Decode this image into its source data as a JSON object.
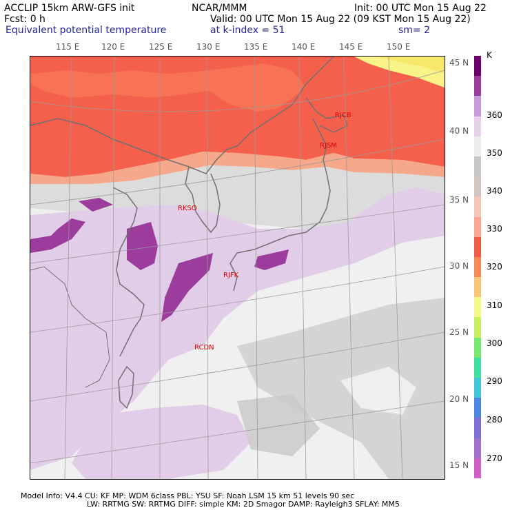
{
  "header": {
    "line1_left": "ACCLIP 15km ARW-GFS init",
    "line1_center": "NCAR/MMM",
    "line1_right": "Init: 00 UTC Mon 15 Aug 22",
    "line2_left": "Fcst:     0 h",
    "line2_right": "Valid: 00 UTC Mon 15 Aug 22 (09 KST Mon 15 Aug 22)",
    "line3_left": "Equivalent potential temperature",
    "line3_center": "at k-index =   51",
    "line3_right": "sm= 2"
  },
  "map": {
    "lon_labels": [
      "115 E",
      "120 E",
      "125 E",
      "130 E",
      "135 E",
      "140 E",
      "145 E",
      "150 E"
    ],
    "lat_labels": [
      "45 N",
      "40 N",
      "35 N",
      "30 N",
      "25 N",
      "20 N",
      "15 N"
    ],
    "stations": [
      "RJCB",
      "RJSM",
      "RKSO",
      "RJFK",
      "RCDN"
    ]
  },
  "colorbar": {
    "unit": "K",
    "labels": [
      "360",
      "350",
      "340",
      "330",
      "320",
      "310",
      "300",
      "290",
      "280",
      "270"
    ],
    "colors": [
      "#6a006a",
      "#9c3c9c",
      "#c89cd8",
      "#e6d0ea",
      "#ececec",
      "#c8c8c8",
      "#d2c6c0",
      "#f2c8b8",
      "#f8a890",
      "#f25a4a",
      "#f88a5a",
      "#f8c878",
      "#f8f888",
      "#c8f060",
      "#78e870",
      "#40e0a0",
      "#40c8d8",
      "#4c88e0",
      "#8070d8",
      "#a070d0",
      "#d060c8"
    ]
  },
  "footer": {
    "line1": "Model Info: V4.4      CU: KF      MP: WDM 6class   PBL: YSU       SF: Noah LSM     15 km    51 levels   90 sec",
    "line2": "LW: RRTMG    SW: RRTMG   DIFF: simple KM: 2D Smagor DAMP: Rayleigh3  SFLAY: MM5"
  }
}
